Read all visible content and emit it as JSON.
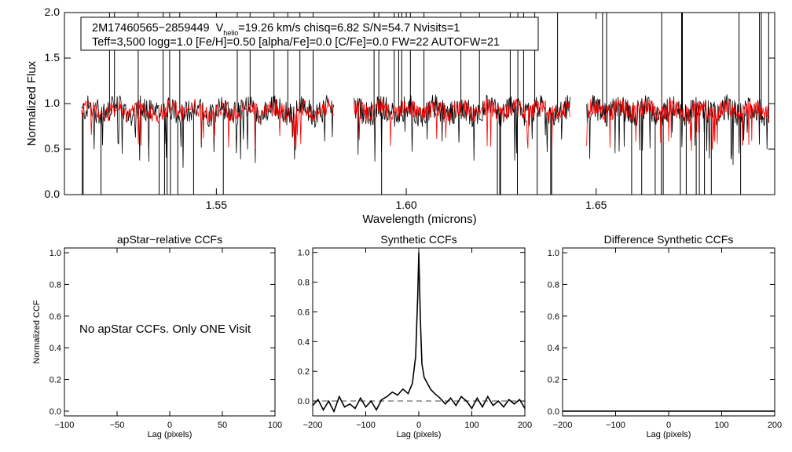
{
  "chart_data": [
    {
      "id": "spectrum",
      "type": "line",
      "title": "",
      "xlabel": "Wavelength (microns)",
      "ylabel": "Normalized Flux",
      "xlim": [
        1.51,
        1.697
      ],
      "ylim": [
        0.0,
        2.0
      ],
      "x_ticks": [
        1.55,
        1.6,
        1.65
      ],
      "x_tick_labels": [
        "1.55",
        "1.60",
        "1.65"
      ],
      "y_ticks": [
        0.0,
        0.5,
        1.0,
        1.5,
        2.0
      ],
      "y_tick_labels": [
        "0.0",
        "0.5",
        "1.0",
        "1.5",
        "2.0"
      ],
      "chips": [
        [
          1.5145,
          1.5809
        ],
        [
          1.5862,
          1.6431
        ],
        [
          1.6475,
          1.6955
        ]
      ],
      "series": [
        {
          "name": "observed",
          "color": "#000000"
        },
        {
          "name": "model",
          "color": "#ff0000"
        }
      ],
      "info_box": {
        "star_id": "2M17460565−2859449",
        "v_symbol": "V",
        "v_subscript": "helio",
        "line1_rest": "=19.26 km/s  chisq=6.82  S/N=54.7  Nvisits=1",
        "line2": "Teff=3,500 logg=1.0 [Fe/H]=0.50 [alpha/Fe]=0.0 [C/Fe]=0.0 FW=22 AUTOFW=21"
      }
    },
    {
      "id": "apstar_ccf",
      "type": "line",
      "title": "apStar−relative CCFs",
      "xlabel": "Lag (pixels)",
      "ylabel": "Normalized CCF",
      "xlim": [
        -100,
        100
      ],
      "ylim": [
        -0.03,
        1.03
      ],
      "x_ticks": [
        -100,
        -50,
        0,
        50,
        100
      ],
      "x_tick_labels": [
        "−100",
        "−50",
        "0",
        "50",
        "100"
      ],
      "y_ticks": [
        0.0,
        0.2,
        0.4,
        0.6,
        0.8,
        1.0
      ],
      "y_tick_labels": [
        "0.0",
        "0.2",
        "0.4",
        "0.6",
        "0.8",
        "1.0"
      ],
      "message": "No apStar CCFs.  Only ONE Visit",
      "series": []
    },
    {
      "id": "synthetic_ccf",
      "type": "line",
      "title": "Synthetic CCFs",
      "xlabel": "Lag (pixels)",
      "ylabel": "",
      "xlim": [
        -200,
        200
      ],
      "ylim": [
        -0.1,
        1.03
      ],
      "x_ticks": [
        -200,
        -100,
        0,
        100,
        200
      ],
      "x_tick_labels": [
        "−200",
        "−100",
        "0",
        "100",
        "200"
      ],
      "y_ticks": [
        0.0,
        0.2,
        0.4,
        0.6,
        0.8,
        1.0
      ],
      "y_tick_labels": [
        "0.0",
        "0.2",
        "0.4",
        "0.6",
        "0.8",
        "1.0"
      ],
      "zero_line": 0.0,
      "series": [
        {
          "name": "ccf",
          "peak_lag": 0,
          "peak_value": 1.0,
          "points": [
            [
              -200,
              -0.03
            ],
            [
              -190,
              0.01
            ],
            [
              -180,
              -0.06
            ],
            [
              -170,
              0.0
            ],
            [
              -160,
              -0.07
            ],
            [
              -150,
              0.03
            ],
            [
              -140,
              -0.04
            ],
            [
              -130,
              -0.02
            ],
            [
              -120,
              -0.05
            ],
            [
              -110,
              0.02
            ],
            [
              -100,
              -0.04
            ],
            [
              -90,
              0.0
            ],
            [
              -80,
              -0.06
            ],
            [
              -70,
              0.01
            ],
            [
              -60,
              0.03
            ],
            [
              -50,
              0.06
            ],
            [
              -40,
              0.04
            ],
            [
              -30,
              0.08
            ],
            [
              -20,
              0.05
            ],
            [
              -12,
              0.12
            ],
            [
              -6,
              0.3
            ],
            [
              -2,
              0.7
            ],
            [
              0,
              1.0
            ],
            [
              3,
              0.55
            ],
            [
              6,
              0.25
            ],
            [
              10,
              0.16
            ],
            [
              16,
              0.12
            ],
            [
              22,
              0.08
            ],
            [
              30,
              0.05
            ],
            [
              40,
              0.02
            ],
            [
              50,
              -0.02
            ],
            [
              60,
              0.02
            ],
            [
              70,
              -0.03
            ],
            [
              80,
              0.03
            ],
            [
              90,
              0.0
            ],
            [
              100,
              -0.05
            ],
            [
              110,
              0.02
            ],
            [
              120,
              -0.04
            ],
            [
              130,
              0.03
            ],
            [
              140,
              -0.03
            ],
            [
              150,
              0.0
            ],
            [
              160,
              -0.04
            ],
            [
              170,
              0.01
            ],
            [
              180,
              -0.02
            ],
            [
              190,
              0.01
            ],
            [
              200,
              -0.05
            ]
          ]
        }
      ]
    },
    {
      "id": "difference_ccf",
      "type": "line",
      "title": "Difference Synthetic CCFs",
      "xlabel": "Lag (pixels)",
      "ylabel": "",
      "xlim": [
        -200,
        200
      ],
      "ylim": [
        -0.03,
        1.03
      ],
      "x_ticks": [
        -200,
        -100,
        0,
        100,
        200
      ],
      "x_tick_labels": [
        "−200",
        "−100",
        "0",
        "100",
        "200"
      ],
      "y_ticks": [
        0.0,
        0.2,
        0.4,
        0.6,
        0.8,
        1.0
      ],
      "y_tick_labels": [
        "0.0",
        "0.2",
        "0.4",
        "0.6",
        "0.8",
        "1.0"
      ],
      "series": [
        {
          "name": "difference",
          "points": [
            [
              -200,
              0.0
            ],
            [
              200,
              0.0
            ]
          ]
        }
      ]
    }
  ]
}
